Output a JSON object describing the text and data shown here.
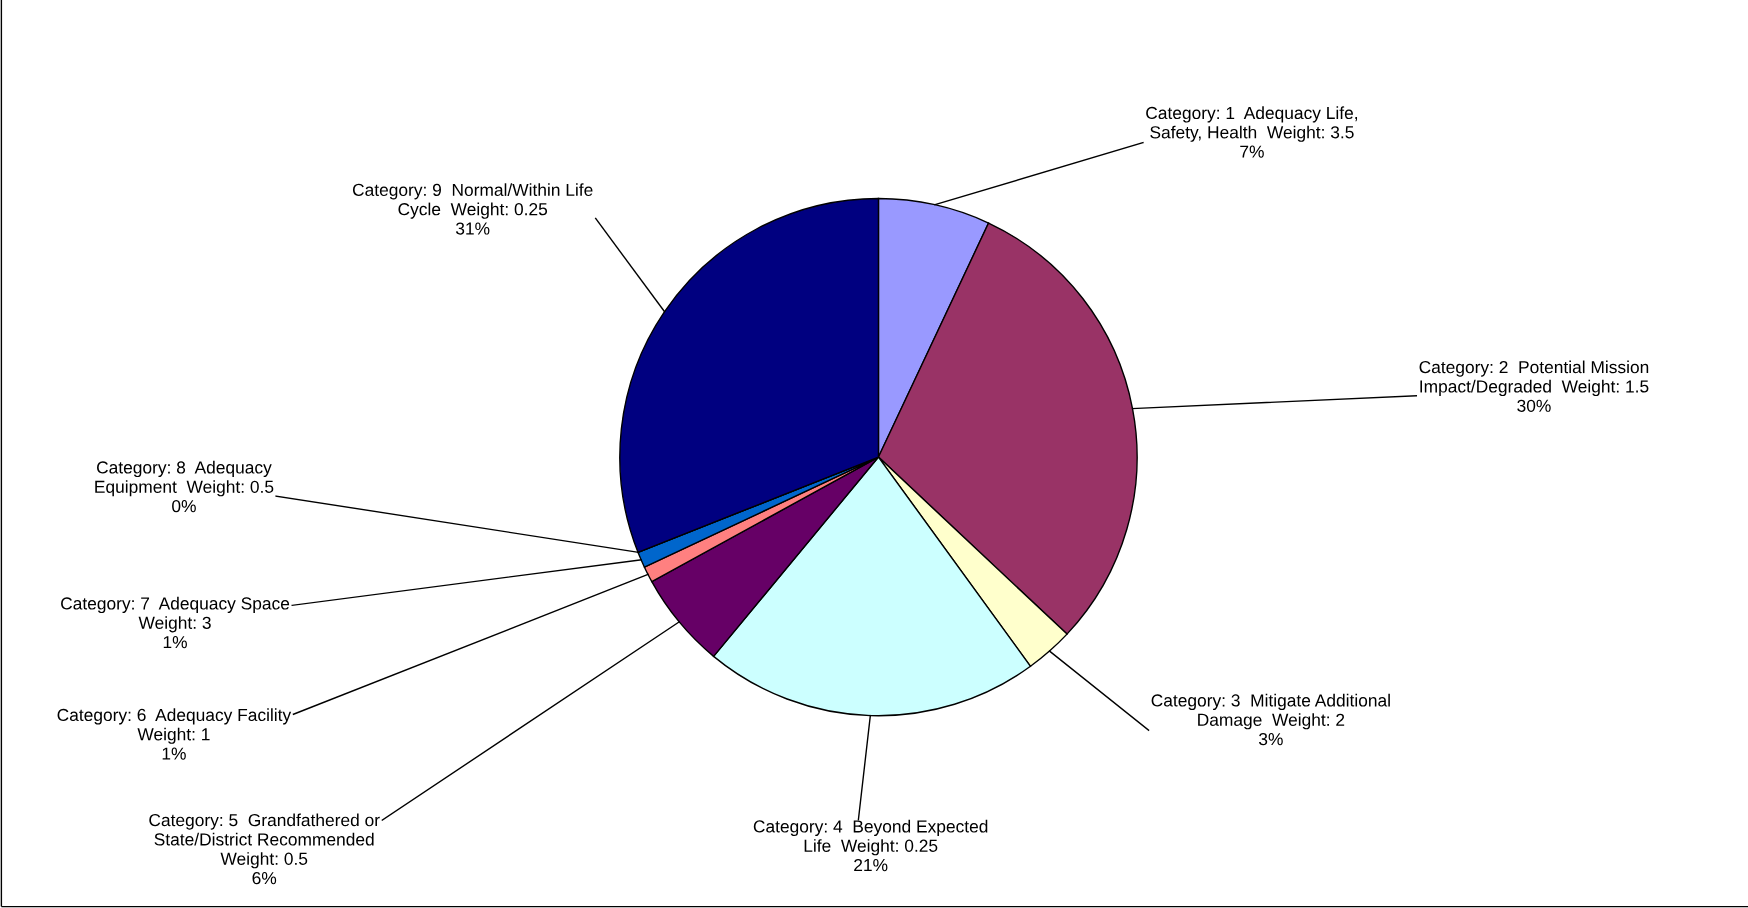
{
  "chart_data": {
    "type": "pie",
    "categories": [
      "Category: 1  Adequacy Life, Safety, Health  Weight: 3.5",
      "Category: 2  Potential Mission Impact/Degraded  Weight: 1.5",
      "Category: 3  Mitigate Additional Damage  Weight: 2",
      "Category: 4  Beyond Expected Life  Weight: 0.25",
      "Category: 5  Grandfathered or State/District Recommended Weight: 0.5",
      "Category: 6  Adequacy Facility Weight: 1",
      "Category: 7  Adequacy Space Weight: 3",
      "Category: 8  Adequacy Equipment  Weight: 0.5",
      "Category: 9  Normal/Within Life Cycle  Weight: 0.25"
    ],
    "values": [
      7,
      30,
      3,
      21,
      6,
      1,
      1,
      0,
      31
    ],
    "value_labels": [
      "7%",
      "30%",
      "3%",
      "21%",
      "6%",
      "1%",
      "1%",
      "0%",
      "31%"
    ],
    "colors": [
      "#9999ff",
      "#993366",
      "#ffffcc",
      "#ccffff",
      "#660066",
      "#ff8080",
      "#0066cc",
      "#ccccff",
      "#000080"
    ],
    "legend": false
  }
}
